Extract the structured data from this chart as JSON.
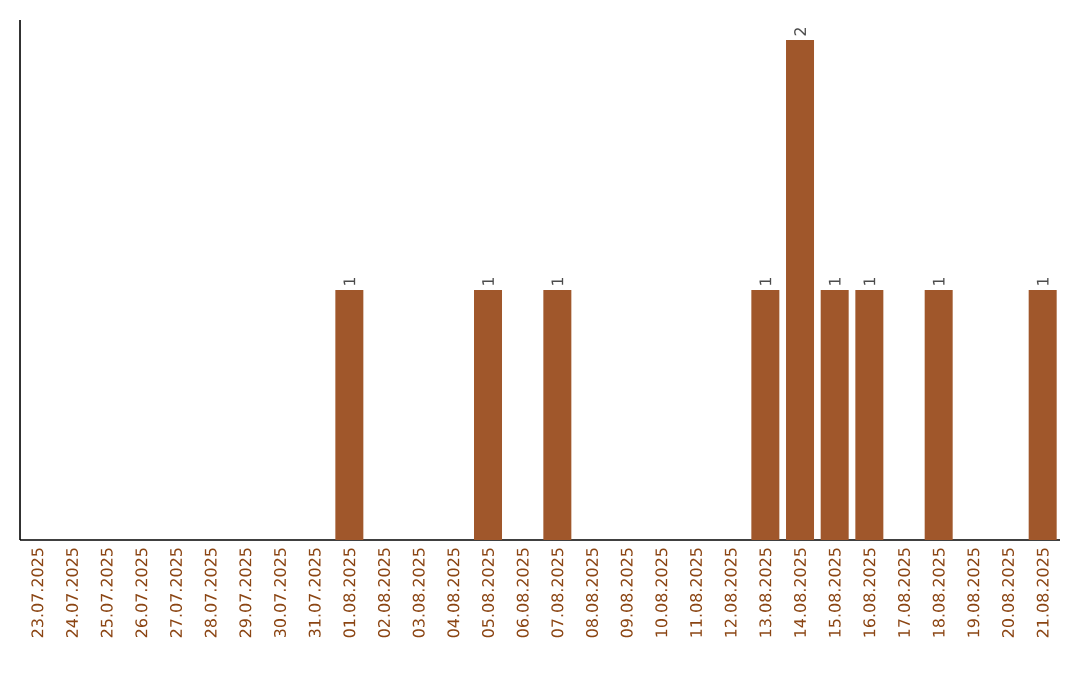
{
  "chart_data": {
    "type": "bar",
    "categories": [
      "23.07.2025",
      "24.07.2025",
      "25.07.2025",
      "26.07.2025",
      "27.07.2025",
      "28.07.2025",
      "29.07.2025",
      "30.07.2025",
      "31.07.2025",
      "01.08.2025",
      "02.08.2025",
      "03.08.2025",
      "04.08.2025",
      "05.08.2025",
      "06.08.2025",
      "07.08.2025",
      "08.08.2025",
      "09.08.2025",
      "10.08.2025",
      "11.08.2025",
      "12.08.2025",
      "13.08.2025",
      "14.08.2025",
      "15.08.2025",
      "16.08.2025",
      "17.08.2025",
      "18.08.2025",
      "19.08.2025",
      "20.08.2025",
      "21.08.2025"
    ],
    "values": [
      0,
      0,
      0,
      0,
      0,
      0,
      0,
      0,
      0,
      1,
      0,
      0,
      0,
      1,
      0,
      1,
      0,
      0,
      0,
      0,
      0,
      1,
      2,
      1,
      1,
      0,
      1,
      0,
      0,
      1
    ],
    "value_labels": [
      null,
      null,
      null,
      null,
      null,
      null,
      null,
      null,
      null,
      "1",
      null,
      null,
      null,
      "1",
      null,
      "1",
      null,
      null,
      null,
      null,
      null,
      "1",
      "2",
      "1",
      "1",
      null,
      "1",
      null,
      null,
      "1"
    ],
    "color": "#a0572b",
    "ylim": [
      0,
      2.08
    ],
    "tick_labels": "x"
  }
}
